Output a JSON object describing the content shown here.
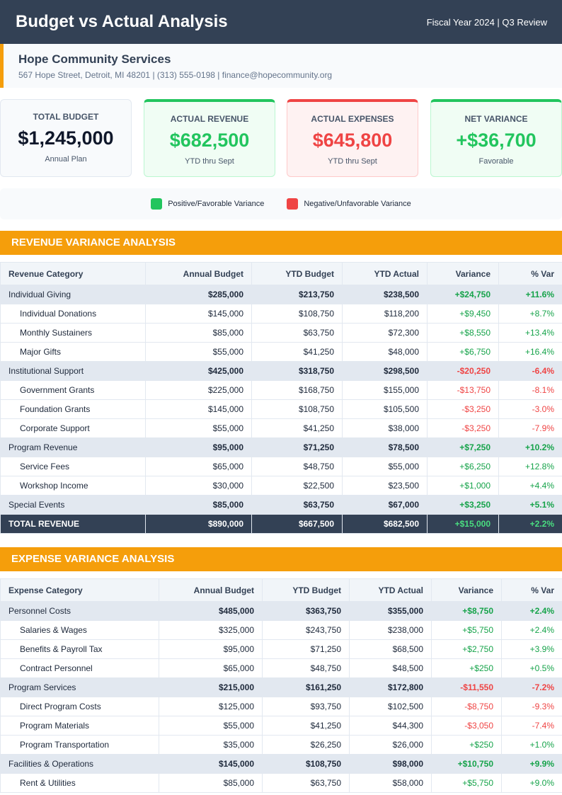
{
  "header": {
    "title": "Budget vs Actual Analysis",
    "subtitle": "Fiscal Year 2024 | Q3 Review"
  },
  "organization": {
    "name": "Hope Community Services",
    "contact": "567 Hope Street, Detroit, MI 48201 | (313) 555-0198 | finance@hopecommunity.org"
  },
  "cards": [
    {
      "label": "TOTAL BUDGET",
      "value": "$1,245,000",
      "note": "Annual Plan"
    },
    {
      "label": "ACTUAL REVENUE",
      "value": "$682,500",
      "note": "YTD thru Sept"
    },
    {
      "label": "ACTUAL EXPENSES",
      "value": "$645,800",
      "note": "YTD thru Sept"
    },
    {
      "label": "NET VARIANCE",
      "value": "+$36,700",
      "note": "Favorable"
    }
  ],
  "legend": [
    "Positive/Favorable Variance",
    "Negative/Unfavorable Variance"
  ],
  "revenue": {
    "title": "REVENUE VARIANCE ANALYSIS",
    "columns": [
      "Revenue Category",
      "Annual Budget",
      "YTD Budget",
      "YTD Actual",
      "Variance",
      "% Var"
    ],
    "groups": [
      {
        "cells": [
          "Individual Giving",
          "$285,000",
          "$213,750",
          "$238,500",
          "+$24,750",
          "+11.6%"
        ],
        "items": [
          [
            "Individual Donations",
            "$145,000",
            "$108,750",
            "$118,200",
            "+$9,450",
            "+8.7%"
          ],
          [
            "Monthly Sustainers",
            "$85,000",
            "$63,750",
            "$72,300",
            "+$8,550",
            "+13.4%"
          ],
          [
            "Major Gifts",
            "$55,000",
            "$41,250",
            "$48,000",
            "+$6,750",
            "+16.4%"
          ]
        ]
      },
      {
        "cells": [
          "Institutional Support",
          "$425,000",
          "$318,750",
          "$298,500",
          "-$20,250",
          "-6.4%"
        ],
        "items": [
          [
            "Government Grants",
            "$225,000",
            "$168,750",
            "$155,000",
            "-$13,750",
            "-8.1%"
          ],
          [
            "Foundation Grants",
            "$145,000",
            "$108,750",
            "$105,500",
            "-$3,250",
            "-3.0%"
          ],
          [
            "Corporate Support",
            "$55,000",
            "$41,250",
            "$38,000",
            "-$3,250",
            "-7.9%"
          ]
        ]
      },
      {
        "cells": [
          "Program Revenue",
          "$95,000",
          "$71,250",
          "$78,500",
          "+$7,250",
          "+10.2%"
        ],
        "items": [
          [
            "Service Fees",
            "$65,000",
            "$48,750",
            "$55,000",
            "+$6,250",
            "+12.8%"
          ],
          [
            "Workshop Income",
            "$30,000",
            "$22,500",
            "$23,500",
            "+$1,000",
            "+4.4%"
          ]
        ]
      },
      {
        "cells": [
          "Special Events",
          "$85,000",
          "$63,750",
          "$67,000",
          "+$3,250",
          "+5.1%"
        ],
        "items": []
      }
    ],
    "total": [
      "TOTAL REVENUE",
      "$890,000",
      "$667,500",
      "$682,500",
      "+$15,000",
      "+2.2%"
    ]
  },
  "expenses": {
    "title": "EXPENSE VARIANCE ANALYSIS",
    "columns": [
      "Expense Category",
      "Annual Budget",
      "YTD Budget",
      "YTD Actual",
      "Variance",
      "% Var"
    ],
    "groups": [
      {
        "cells": [
          "Personnel Costs",
          "$485,000",
          "$363,750",
          "$355,000",
          "+$8,750",
          "+2.4%"
        ],
        "items": [
          [
            "Salaries & Wages",
            "$325,000",
            "$243,750",
            "$238,000",
            "+$5,750",
            "+2.4%"
          ],
          [
            "Benefits & Payroll Tax",
            "$95,000",
            "$71,250",
            "$68,500",
            "+$2,750",
            "+3.9%"
          ],
          [
            "Contract Personnel",
            "$65,000",
            "$48,750",
            "$48,500",
            "+$250",
            "+0.5%"
          ]
        ]
      },
      {
        "cells": [
          "Program Services",
          "$215,000",
          "$161,250",
          "$172,800",
          "-$11,550",
          "-7.2%"
        ],
        "items": [
          [
            "Direct Program Costs",
            "$125,000",
            "$93,750",
            "$102,500",
            "-$8,750",
            "-9.3%"
          ],
          [
            "Program Materials",
            "$55,000",
            "$41,250",
            "$44,300",
            "-$3,050",
            "-7.4%"
          ],
          [
            "Program Transportation",
            "$35,000",
            "$26,250",
            "$26,000",
            "+$250",
            "+1.0%"
          ]
        ]
      },
      {
        "cells": [
          "Facilities & Operations",
          "$145,000",
          "$108,750",
          "$98,000",
          "+$10,750",
          "+9.9%"
        ],
        "items": [
          [
            "Rent & Utilities",
            "$85,000",
            "$63,750",
            "$58,000",
            "+$5,750",
            "+9.0%"
          ]
        ]
      }
    ]
  }
}
